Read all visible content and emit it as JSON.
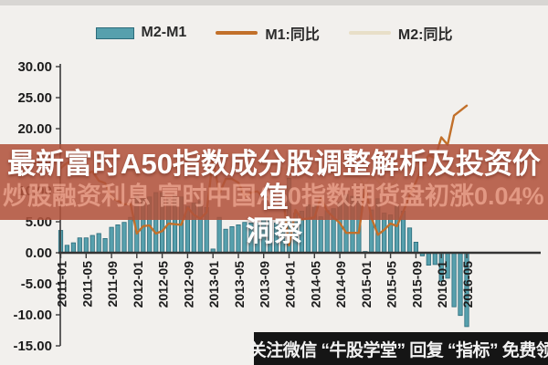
{
  "colors": {
    "background": "#f2f0ed",
    "bar_fill": "#57a0ad",
    "bar_border": "#2c6b7a",
    "m1_line": "#c2702a",
    "m2_line": "#e8dfc8",
    "axis": "#3a3a3a",
    "band": "#b1533c",
    "footer_bg": "#151515"
  },
  "legend": {
    "items": [
      {
        "label": "M2-M1",
        "type": "bar",
        "color": "#57a0ad"
      },
      {
        "label": "M1:同比",
        "type": "line",
        "color": "#c2702a"
      },
      {
        "label": "M2:同比",
        "type": "line",
        "color": "#e8dfc8"
      }
    ]
  },
  "overlay": {
    "title_line1": "最新富时A50指数成分股调整解析及投资价值",
    "title_line2": "洞察",
    "watermark": "炒股融资利息 富时中国A50指数期货盘初涨0.04%"
  },
  "footer": {
    "text": "关注微信 “牛股学堂” 回复 “指标” 免费领"
  },
  "chart_data": {
    "type": "bar",
    "title": "",
    "xlabel": "",
    "ylabel": "",
    "ylim": [
      -15,
      30
    ],
    "grid": false,
    "legend_position": "top",
    "y_ticks": [
      "30.00",
      "25.00",
      "20.00",
      "15.00",
      "10.00",
      "5.00",
      "0.00",
      "-5.00",
      "-10.00",
      "-15.00"
    ],
    "x_tick_labels": [
      "2011-01",
      "2011-05",
      "2011-09",
      "2012-01",
      "2012-05",
      "2012-09",
      "2013-01",
      "2013-05",
      "2013-09",
      "2014-01",
      "2014-05",
      "2014-09",
      "2015-01",
      "2015-05",
      "2015-09",
      "2016-01",
      "2016-05"
    ],
    "x": [
      "2011-01",
      "2011-02",
      "2011-03",
      "2011-04",
      "2011-05",
      "2011-06",
      "2011-07",
      "2011-08",
      "2011-09",
      "2011-10",
      "2011-11",
      "2011-12",
      "2012-01",
      "2012-02",
      "2012-03",
      "2012-04",
      "2012-05",
      "2012-06",
      "2012-07",
      "2012-08",
      "2012-09",
      "2012-10",
      "2012-11",
      "2012-12",
      "2013-01",
      "2013-02",
      "2013-03",
      "2013-04",
      "2013-05",
      "2013-06",
      "2013-07",
      "2013-08",
      "2013-09",
      "2013-10",
      "2013-11",
      "2013-12",
      "2014-01",
      "2014-02",
      "2014-03",
      "2014-04",
      "2014-05",
      "2014-06",
      "2014-07",
      "2014-08",
      "2014-09",
      "2014-10",
      "2014-11",
      "2014-12",
      "2015-01",
      "2015-02",
      "2015-03",
      "2015-04",
      "2015-05",
      "2015-06",
      "2015-07",
      "2015-08",
      "2015-09",
      "2015-10",
      "2015-11",
      "2015-12",
      "2016-01",
      "2016-02",
      "2016-03",
      "2016-04",
      "2016-05"
    ],
    "series": [
      {
        "name": "M2-M1",
        "type": "bar",
        "color": "#57a0ad",
        "values": [
          3.6,
          1.2,
          1.6,
          2.4,
          2.4,
          2.8,
          3.1,
          2.3,
          4.1,
          4.5,
          4.9,
          5.7,
          9.3,
          8.7,
          9.0,
          9.7,
          9.7,
          8.9,
          9.3,
          9.0,
          7.5,
          8.0,
          8.4,
          7.3,
          0.6,
          5.7,
          3.8,
          4.2,
          4.5,
          4.9,
          4.8,
          4.8,
          5.3,
          5.4,
          4.8,
          4.3,
          12.0,
          6.4,
          6.7,
          7.7,
          7.7,
          5.8,
          6.8,
          7.1,
          8.1,
          9.4,
          9.1,
          9.0,
          0.2,
          6.9,
          8.7,
          6.4,
          6.1,
          7.5,
          6.7,
          4.0,
          1.7,
          -0.5,
          -2.0,
          -1.9,
          -4.6,
          -4.1,
          -8.7,
          -10.1,
          -11.9
        ]
      },
      {
        "name": "M1:同比",
        "type": "line",
        "color": "#c2702a",
        "values": [
          13.6,
          14.5,
          15.0,
          12.9,
          12.7,
          13.1,
          11.6,
          11.2,
          8.9,
          8.4,
          7.8,
          7.9,
          3.1,
          4.3,
          4.4,
          3.1,
          3.5,
          4.7,
          4.6,
          4.5,
          7.3,
          6.1,
          5.5,
          6.5,
          15.3,
          9.5,
          11.9,
          11.9,
          11.3,
          9.1,
          9.7,
          9.9,
          8.9,
          8.9,
          9.4,
          9.3,
          1.2,
          6.9,
          5.4,
          5.5,
          5.7,
          8.9,
          6.7,
          5.7,
          4.8,
          3.2,
          3.2,
          3.2,
          10.6,
          5.6,
          2.9,
          3.7,
          4.7,
          4.3,
          6.6,
          9.3,
          11.4,
          14.0,
          15.7,
          15.2,
          18.6,
          17.4,
          22.1,
          22.9,
          23.7
        ]
      },
      {
        "name": "M2:同比",
        "type": "line",
        "color": "#e8dfc8",
        "values": [
          17.2,
          15.7,
          16.6,
          15.3,
          15.1,
          15.9,
          14.7,
          13.5,
          13.0,
          12.9,
          12.7,
          13.6,
          12.4,
          13.0,
          13.4,
          12.8,
          13.2,
          13.6,
          13.9,
          13.5,
          14.8,
          14.1,
          13.9,
          13.8,
          15.9,
          15.2,
          15.7,
          16.1,
          15.8,
          14.0,
          14.5,
          14.7,
          14.2,
          14.3,
          14.2,
          13.6,
          13.2,
          13.3,
          12.1,
          13.2,
          13.4,
          14.7,
          13.5,
          12.8,
          12.9,
          12.6,
          12.3,
          12.2,
          10.8,
          12.5,
          11.6,
          10.1,
          10.8,
          11.8,
          13.3,
          13.3,
          13.1,
          13.5,
          13.7,
          13.3,
          14.0,
          13.3,
          13.4,
          12.8,
          11.8
        ]
      }
    ]
  }
}
